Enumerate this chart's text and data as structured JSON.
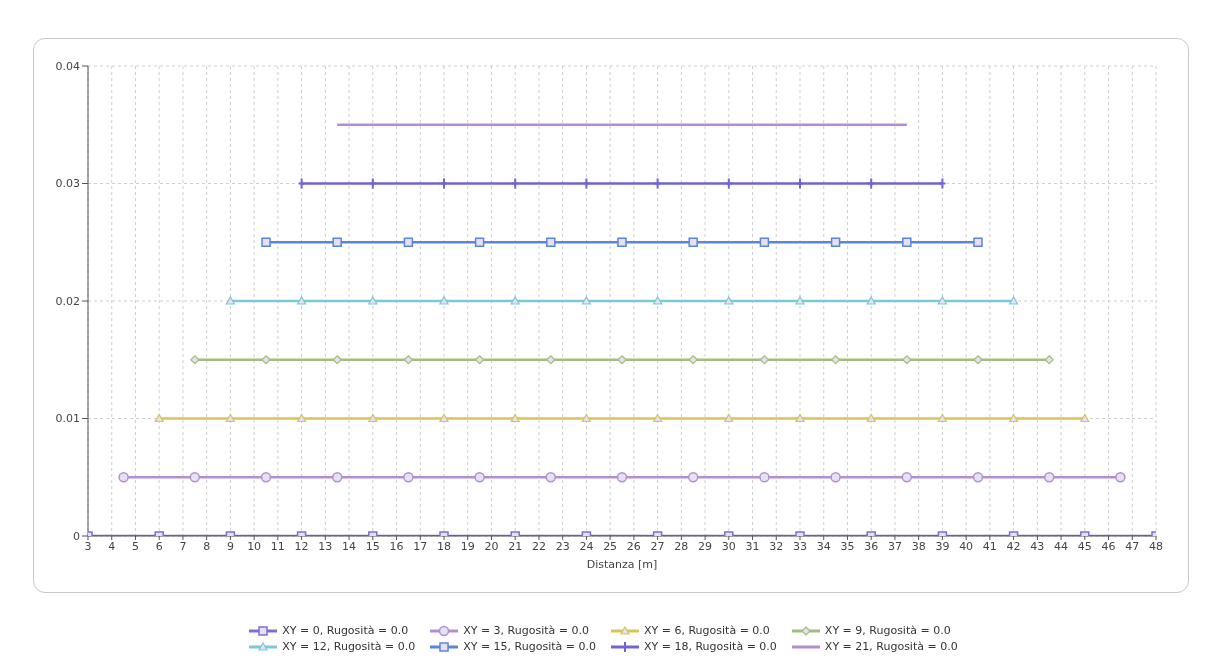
{
  "chart_data": {
    "type": "line",
    "xlabel": "Distanza [m]",
    "xlim": [
      3,
      48
    ],
    "xticks": [
      3,
      4,
      5,
      6,
      7,
      8,
      9,
      10,
      11,
      12,
      13,
      14,
      15,
      16,
      17,
      18,
      19,
      20,
      21,
      22,
      23,
      24,
      25,
      26,
      27,
      28,
      29,
      30,
      31,
      32,
      33,
      34,
      35,
      36,
      37,
      38,
      39,
      40,
      41,
      42,
      43,
      44,
      45,
      46,
      47,
      48
    ],
    "ylim": [
      0,
      0.04
    ],
    "yticks": [
      0,
      0.01,
      0.02,
      0.03,
      0.04
    ],
    "grid": true,
    "legend": "bottom",
    "line_style": "solid",
    "series": [
      {
        "name": "XY = 0, Rugosità = 0.0",
        "color": "#7b6fd6",
        "marker": "square",
        "x": [
          3,
          6,
          9,
          12,
          15,
          18,
          21,
          24,
          27,
          30,
          33,
          36,
          39,
          42,
          45,
          48
        ],
        "values": [
          0,
          0,
          0,
          0,
          0,
          0,
          0,
          0,
          0,
          0,
          0,
          0,
          0,
          0,
          0,
          0
        ]
      },
      {
        "name": "XY = 3, Rugosità = 0.0",
        "color": "#b48fd0",
        "marker": "circle",
        "x": [
          4.5,
          7.5,
          10.5,
          13.5,
          16.5,
          19.5,
          22.5,
          25.5,
          28.5,
          31.5,
          34.5,
          37.5,
          40.5,
          43.5,
          46.5
        ],
        "values": [
          0.005,
          0.005,
          0.005,
          0.005,
          0.005,
          0.005,
          0.005,
          0.005,
          0.005,
          0.005,
          0.005,
          0.005,
          0.005,
          0.005,
          0.005
        ]
      },
      {
        "name": "XY = 6, Rugosità = 0.0",
        "color": "#d9c35a",
        "marker": "triangle",
        "x": [
          6,
          9,
          12,
          15,
          18,
          21,
          24,
          27,
          30,
          33,
          36,
          39,
          42,
          45
        ],
        "values": [
          0.01,
          0.01,
          0.01,
          0.01,
          0.01,
          0.01,
          0.01,
          0.01,
          0.01,
          0.01,
          0.01,
          0.01,
          0.01,
          0.01
        ]
      },
      {
        "name": "XY = 9, Rugosità = 0.0",
        "color": "#a3bd7e",
        "marker": "diamond",
        "x": [
          7.5,
          10.5,
          13.5,
          16.5,
          19.5,
          22.5,
          25.5,
          28.5,
          31.5,
          34.5,
          37.5,
          40.5,
          43.5
        ],
        "values": [
          0.015,
          0.015,
          0.015,
          0.015,
          0.015,
          0.015,
          0.015,
          0.015,
          0.015,
          0.015,
          0.015,
          0.015,
          0.015
        ]
      },
      {
        "name": "XY = 12, Rugosità = 0.0",
        "color": "#7cc8d8",
        "marker": "triangle",
        "x": [
          9,
          12,
          15,
          18,
          21,
          24,
          27,
          30,
          33,
          36,
          39,
          42
        ],
        "values": [
          0.02,
          0.02,
          0.02,
          0.02,
          0.02,
          0.02,
          0.02,
          0.02,
          0.02,
          0.02,
          0.02,
          0.02
        ]
      },
      {
        "name": "XY = 15, Rugosità = 0.0",
        "color": "#5b86d8",
        "marker": "square",
        "x": [
          10.5,
          13.5,
          16.5,
          19.5,
          22.5,
          25.5,
          28.5,
          31.5,
          34.5,
          37.5,
          40.5
        ],
        "values": [
          0.025,
          0.025,
          0.025,
          0.025,
          0.025,
          0.025,
          0.025,
          0.025,
          0.025,
          0.025,
          0.025
        ]
      },
      {
        "name": "XY = 18, Rugosità = 0.0",
        "color": "#7063d6",
        "marker": "cross",
        "x": [
          12,
          15,
          18,
          21,
          24,
          27,
          30,
          33,
          36,
          39
        ],
        "values": [
          0.03,
          0.03,
          0.03,
          0.03,
          0.03,
          0.03,
          0.03,
          0.03,
          0.03,
          0.03
        ]
      },
      {
        "name": "XY = 21, Rugosità = 0.0",
        "color": "#b78ad6",
        "marker": "none",
        "x": [
          13.5,
          16.5,
          19.5,
          22.5,
          25.5,
          28.5,
          31.5,
          34.5,
          37.5
        ],
        "values": [
          0.035,
          0.035,
          0.035,
          0.035,
          0.035,
          0.035,
          0.035,
          0.035,
          0.035
        ]
      }
    ]
  }
}
